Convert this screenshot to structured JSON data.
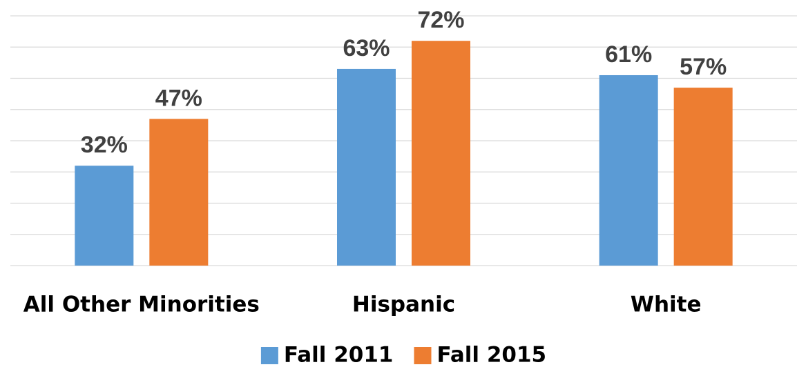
{
  "chart_data": {
    "type": "bar",
    "categories": [
      "All Other Minorities",
      "Hispanic",
      "White"
    ],
    "series": [
      {
        "name": "Fall 2011",
        "color": "#5b9bd5",
        "values": [
          32,
          63,
          61
        ],
        "value_labels": [
          "32%",
          "63%",
          "61%"
        ]
      },
      {
        "name": "Fall 2015",
        "color": "#ed7d31",
        "values": [
          47,
          72,
          57
        ],
        "value_labels": [
          "47%",
          "72%",
          "57%"
        ]
      }
    ],
    "ylim": [
      0,
      80
    ],
    "yticks": [
      0,
      10,
      20,
      30,
      40,
      50,
      60,
      70,
      80
    ],
    "grid": true,
    "legend": "bottom"
  }
}
